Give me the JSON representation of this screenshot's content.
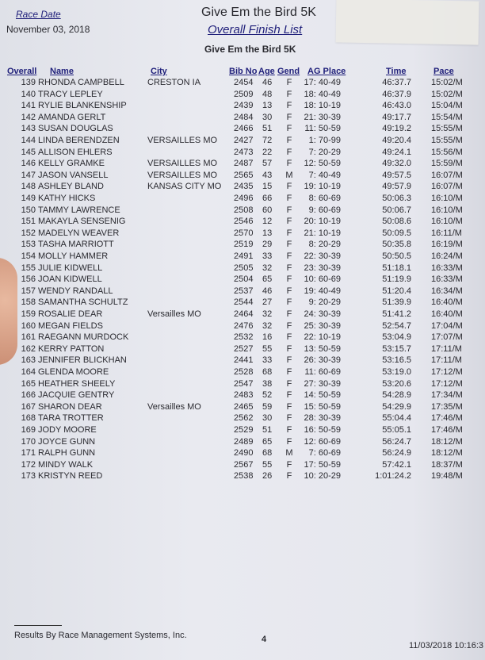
{
  "header": {
    "race_date_label": "Race Date",
    "race_date": "November 03, 2018",
    "title": "Give Em the Bird 5K",
    "subtitle": "Overall Finish List",
    "event_name": "Give Em the Bird 5K"
  },
  "columns": [
    "Overall",
    "Name",
    "City",
    "Bib No",
    "Age",
    "Gend",
    "AG Place",
    "Time",
    "Pace"
  ],
  "rows": [
    [
      "139",
      "RHONDA CAMPBELL",
      "CRESTON  IA",
      "2454",
      "46",
      "F",
      "17: 40-49",
      "46:37.7",
      "15:02/M"
    ],
    [
      "140",
      "TRACY LEPLEY",
      "",
      "2509",
      "48",
      "F",
      "18: 40-49",
      "46:37.9",
      "15:02/M"
    ],
    [
      "141",
      "RYLIE BLANKENSHIP",
      "",
      "2439",
      "13",
      "F",
      "18: 10-19",
      "46:43.0",
      "15:04/M"
    ],
    [
      "142",
      "AMANDA GERLT",
      "",
      "2484",
      "30",
      "F",
      "21: 30-39",
      "49:17.7",
      "15:54/M"
    ],
    [
      "143",
      "SUSAN DOUGLAS",
      "",
      "2466",
      "51",
      "F",
      "11: 50-59",
      "49:19.2",
      "15:55/M"
    ],
    [
      "144",
      "LINDA BERENDZEN",
      "VERSAILLES  MO",
      "2427",
      "72",
      "F",
      "1: 70-99",
      "49:20.4",
      "15:55/M"
    ],
    [
      "145",
      "ALLISON EHLERS",
      "",
      "2473",
      "22",
      "F",
      "7: 20-29",
      "49:24.1",
      "15:56/M"
    ],
    [
      "146",
      "KELLY GRAMKE",
      "VERSAILLES  MO",
      "2487",
      "57",
      "F",
      "12: 50-59",
      "49:32.0",
      "15:59/M"
    ],
    [
      "147",
      "JASON VANSELL",
      "VERSAILLES  MO",
      "2565",
      "43",
      "M",
      "7: 40-49",
      "49:57.5",
      "16:07/M"
    ],
    [
      "148",
      "ASHLEY BLAND",
      "KANSAS CITY  MO",
      "2435",
      "15",
      "F",
      "19: 10-19",
      "49:57.9",
      "16:07/M"
    ],
    [
      "149",
      "KATHY HICKS",
      "",
      "2496",
      "66",
      "F",
      "8: 60-69",
      "50:06.3",
      "16:10/M"
    ],
    [
      "150",
      "TAMMY LAWRENCE",
      "",
      "2508",
      "60",
      "F",
      "9: 60-69",
      "50:06.7",
      "16:10/M"
    ],
    [
      "151",
      "MAKAYLA SENSENIG",
      "",
      "2546",
      "12",
      "F",
      "20: 10-19",
      "50:08.6",
      "16:10/M"
    ],
    [
      "152",
      "MADELYN WEAVER",
      "",
      "2570",
      "13",
      "F",
      "21: 10-19",
      "50:09.5",
      "16:11/M"
    ],
    [
      "153",
      "TASHA MARRIOTT",
      "",
      "2519",
      "29",
      "F",
      "8: 20-29",
      "50:35.8",
      "16:19/M"
    ],
    [
      "154",
      "MOLLY HAMMER",
      "",
      "2491",
      "33",
      "F",
      "22: 30-39",
      "50:50.5",
      "16:24/M"
    ],
    [
      "155",
      "JULIE KIDWELL",
      "",
      "2505",
      "32",
      "F",
      "23: 30-39",
      "51:18.1",
      "16:33/M"
    ],
    [
      "156",
      "JOAN KIDWELL",
      "",
      "2504",
      "65",
      "F",
      "10: 60-69",
      "51:19.9",
      "16:33/M"
    ],
    [
      "157",
      "WENDY RANDALL",
      "",
      "2537",
      "46",
      "F",
      "19: 40-49",
      "51:20.4",
      "16:34/M"
    ],
    [
      "158",
      "SAMANTHA SCHULTZ",
      "",
      "2544",
      "27",
      "F",
      "9: 20-29",
      "51:39.9",
      "16:40/M"
    ],
    [
      "159",
      "ROSALIE DEAR",
      "Versailles  MO",
      "2464",
      "32",
      "F",
      "24: 30-39",
      "51:41.2",
      "16:40/M"
    ],
    [
      "160",
      "MEGAN FIELDS",
      "",
      "2476",
      "32",
      "F",
      "25: 30-39",
      "52:54.7",
      "17:04/M"
    ],
    [
      "161",
      "RAEGANN MURDOCK",
      "",
      "2532",
      "16",
      "F",
      "22: 10-19",
      "53:04.9",
      "17:07/M"
    ],
    [
      "162",
      "KERRY PATTON",
      "",
      "2527",
      "55",
      "F",
      "13: 50-59",
      "53:15.7",
      "17:11/M"
    ],
    [
      "163",
      "JENNIFER BLICKHAN",
      "",
      "2441",
      "33",
      "F",
      "26: 30-39",
      "53:16.5",
      "17:11/M"
    ],
    [
      "164",
      "GLENDA MOORE",
      "",
      "2528",
      "68",
      "F",
      "11: 60-69",
      "53:19.0",
      "17:12/M"
    ],
    [
      "165",
      "HEATHER SHEELY",
      "",
      "2547",
      "38",
      "F",
      "27: 30-39",
      "53:20.6",
      "17:12/M"
    ],
    [
      "166",
      "JACQUIE GENTRY",
      "",
      "2483",
      "52",
      "F",
      "14: 50-59",
      "54:28.9",
      "17:34/M"
    ],
    [
      "167",
      "SHARON DEAR",
      "Versailles  MO",
      "2465",
      "59",
      "F",
      "15: 50-59",
      "54:29.9",
      "17:35/M"
    ],
    [
      "168",
      "TARA TROTTER",
      "",
      "2562",
      "30",
      "F",
      "28: 30-39",
      "55:04.4",
      "17:46/M"
    ],
    [
      "169",
      "JODY MOORE",
      "",
      "2529",
      "51",
      "F",
      "16: 50-59",
      "55:05.1",
      "17:46/M"
    ],
    [
      "170",
      "JOYCE GUNN",
      "",
      "2489",
      "65",
      "F",
      "12: 60-69",
      "56:24.7",
      "18:12/M"
    ],
    [
      "171",
      "RALPH GUNN",
      "",
      "2490",
      "68",
      "M",
      "7: 60-69",
      "56:24.9",
      "18:12/M"
    ],
    [
      "172",
      "MINDY WALK",
      "",
      "2567",
      "55",
      "F",
      "17: 50-59",
      "57:42.1",
      "18:37/M"
    ],
    [
      "173",
      "KRISTYN REED",
      "",
      "2538",
      "26",
      "F",
      "10: 20-29",
      "1:01:24.2",
      "19:48/M"
    ]
  ],
  "footer": {
    "credit": "Results By Race Management Systems, Inc.",
    "page": "4",
    "printed": "11/03/2018 10:16:3"
  }
}
